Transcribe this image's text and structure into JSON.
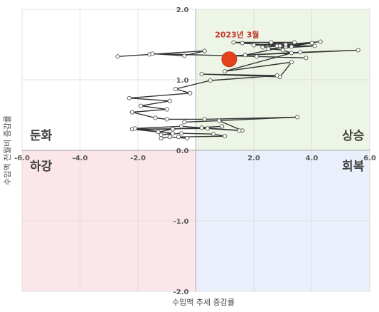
{
  "chart_data": {
    "type": "scatter",
    "xlabel": "수입액 추세 증감률",
    "ylabel": "수입액 전월비 증감률",
    "xlim": [
      -6.0,
      6.0
    ],
    "ylim": [
      -2.0,
      2.0
    ],
    "x_ticks": [
      "-6.0",
      "-4.0",
      "-2.0",
      "0.0",
      "2.0",
      "4.0",
      "6.0"
    ],
    "y_ticks": [
      "2.0",
      "1.0",
      "0.0",
      "-1.0",
      "-2.0"
    ],
    "grid": true,
    "quadrants": [
      {
        "label": "상승",
        "color": "#edf6e6"
      },
      {
        "label": "둔화",
        "color": "#ffffff"
      },
      {
        "label": "하강",
        "color": "#fbe7e9"
      },
      {
        "label": "회복",
        "color": "#eaf0fb"
      }
    ],
    "line_color": "#333333",
    "marker_fill": "#ffffff",
    "highlight": {
      "label": "2023년 3월",
      "x": 1.15,
      "y": 1.29,
      "color": "#e3431a"
    },
    "series": [
      {
        "x": [
          -2.7,
          -1.6,
          0.3,
          -0.4,
          -1.5,
          2.1,
          3.8,
          1.2,
          5.6,
          3.6,
          1.7,
          3.1,
          4.0,
          2.3,
          2.6,
          3.3,
          1.6,
          2.8,
          4.3,
          3.1,
          2.0,
          3.4,
          1.3,
          2.9,
          4.1,
          2.5,
          3.0,
          3.3,
          1.0,
          3.3,
          2.9,
          0.2,
          2.8,
          0.5,
          -0.7,
          -0.2,
          -2.3,
          -0.9,
          -1.9,
          -1.0,
          -2.2,
          -1.4,
          -1.0,
          0.3,
          3.5,
          -0.4,
          0.8,
          1.6,
          0.2,
          0.9,
          -0.8,
          -1.3,
          -2.2,
          0.4,
          1.5,
          -0.5,
          -2.1,
          -0.8,
          -1.2,
          -0.5,
          0.6,
          1.0,
          -0.6,
          -0.3,
          -0.9,
          -1.2
        ],
        "y": [
          1.33,
          1.36,
          1.41,
          1.34,
          1.37,
          1.33,
          1.31,
          1.34,
          1.42,
          1.39,
          1.35,
          1.47,
          1.52,
          1.46,
          1.53,
          1.47,
          1.52,
          1.48,
          1.54,
          1.5,
          1.49,
          1.53,
          1.53,
          1.48,
          1.48,
          1.44,
          1.42,
          1.38,
          1.12,
          1.25,
          1.04,
          1.08,
          1.06,
          0.99,
          0.87,
          0.81,
          0.74,
          0.7,
          0.63,
          0.58,
          0.54,
          0.46,
          0.44,
          0.44,
          0.47,
          0.4,
          0.42,
          0.28,
          0.32,
          0.34,
          0.3,
          0.26,
          0.3,
          0.31,
          0.28,
          0.34,
          0.31,
          0.24,
          0.22,
          0.24,
          0.23,
          0.2,
          0.19,
          0.17,
          0.19,
          0.17
        ]
      }
    ]
  }
}
